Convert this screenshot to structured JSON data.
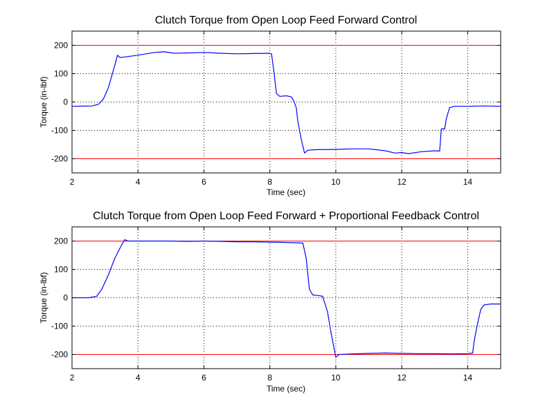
{
  "chart_data": [
    {
      "type": "line",
      "title": "Clutch Torque from Open Loop Feed Forward Control",
      "xlabel": "Time (sec)",
      "ylabel": "Torque (in-lbf)",
      "xlim": [
        2,
        15
      ],
      "ylim": [
        -250,
        250
      ],
      "xticks": [
        2,
        4,
        6,
        8,
        10,
        12,
        14
      ],
      "yticks": [
        -200,
        -100,
        0,
        100,
        200
      ],
      "grid": true,
      "reference_lines": [
        200,
        -200
      ],
      "colors": {
        "series": "#0000ff",
        "reference": "#ff0000"
      },
      "series": [
        {
          "color": "#0000ff",
          "x": [
            2.0,
            2.6,
            2.8,
            2.95,
            3.1,
            3.25,
            3.38,
            3.45,
            3.55,
            4.0,
            4.5,
            4.8,
            5.1,
            5.5,
            6.0,
            6.5,
            7.0,
            7.5,
            7.95,
            8.05,
            8.12,
            8.2,
            8.3,
            8.5,
            8.65,
            8.72,
            8.8,
            8.85,
            8.95,
            9.05,
            9.15,
            9.4,
            10.0,
            10.5,
            11.0,
            11.5,
            11.8,
            12.0,
            12.2,
            12.6,
            13.0,
            13.15,
            13.2,
            13.3,
            13.35,
            13.45,
            13.6,
            14.0,
            14.5,
            15.0
          ],
          "y": [
            -15,
            -14,
            -8,
            10,
            50,
            110,
            165,
            157,
            158,
            165,
            175,
            177,
            172,
            173,
            175,
            172,
            170,
            171,
            172,
            170,
            110,
            30,
            20,
            22,
            18,
            5,
            -20,
            -70,
            -130,
            -180,
            -170,
            -168,
            -167,
            -165,
            -165,
            -172,
            -180,
            -178,
            -182,
            -175,
            -172,
            -173,
            -95,
            -95,
            -60,
            -20,
            -15,
            -15,
            -14,
            -15
          ]
        }
      ]
    },
    {
      "type": "line",
      "title": "Clutch Torque from Open Loop Feed Forward + Proportional Feedback Control",
      "xlabel": "Time (sec)",
      "ylabel": "Torque (in-lbf)",
      "xlim": [
        2,
        15
      ],
      "ylim": [
        -250,
        250
      ],
      "xticks": [
        2,
        4,
        6,
        8,
        10,
        12,
        14
      ],
      "yticks": [
        -200,
        -100,
        0,
        100,
        200
      ],
      "grid": true,
      "reference_lines": [
        200,
        -200
      ],
      "colors": {
        "series": "#0000ff",
        "reference": "#ff0000"
      },
      "series": [
        {
          "color": "#0000ff",
          "x": [
            2.0,
            2.5,
            2.75,
            2.9,
            3.1,
            3.3,
            3.5,
            3.6,
            3.7,
            4.0,
            4.5,
            5.0,
            5.5,
            6.0,
            6.5,
            7.0,
            7.5,
            8.0,
            8.5,
            9.0,
            9.1,
            9.2,
            9.3,
            9.45,
            9.6,
            9.75,
            9.85,
            9.95,
            10.0,
            10.1,
            10.5,
            11.0,
            11.5,
            12.0,
            12.5,
            13.0,
            13.5,
            14.0,
            14.15,
            14.2,
            14.3,
            14.4,
            14.5,
            14.7,
            15.0
          ],
          "y": [
            0,
            0,
            5,
            30,
            80,
            140,
            185,
            205,
            200,
            200,
            200,
            200,
            199,
            200,
            199,
            197,
            197,
            196,
            195,
            193,
            140,
            30,
            10,
            8,
            5,
            -50,
            -120,
            -180,
            -210,
            -200,
            -198,
            -196,
            -195,
            -196,
            -197,
            -197,
            -198,
            -197,
            -195,
            -150,
            -90,
            -40,
            -25,
            -22,
            -22
          ]
        }
      ]
    }
  ]
}
